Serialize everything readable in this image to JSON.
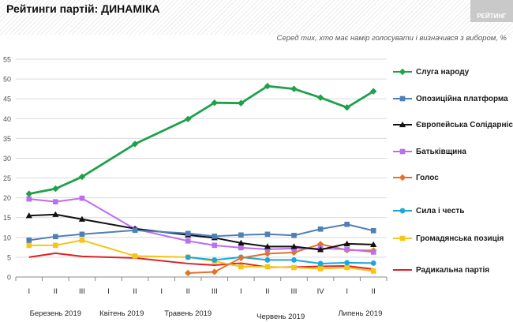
{
  "header": {
    "title": "Рейтинги партій: ДИНАМІКА",
    "brand": "РЕЙТИНГ",
    "subtitle": "Серед тих, хто має намір голосувати і визначився з вибором, %"
  },
  "chart_data": {
    "type": "line",
    "ylim": [
      0,
      55
    ],
    "yticks": [
      0,
      5,
      10,
      15,
      20,
      25,
      30,
      35,
      40,
      45,
      50,
      55
    ],
    "x_ticks": [
      "I",
      "II",
      "III",
      "I",
      "II",
      "I",
      "II",
      "III",
      "I",
      "II",
      "III",
      "IV",
      "I",
      "II"
    ],
    "month_labels": [
      {
        "label": "Березень 2019",
        "center_index": 1
      },
      {
        "label": "Квітень 2019",
        "center_index": 3.5
      },
      {
        "label": "Травень 2019",
        "center_index": 6
      },
      {
        "label": "Червень 2019",
        "center_index": 9.5
      },
      {
        "label": "Липень 2019",
        "center_index": 12.5
      }
    ],
    "grid": true,
    "legend_position": "right",
    "series": [
      {
        "name": "Слуга народу",
        "color": "#1fa04a",
        "marker": "diamond",
        "points": [
          [
            0,
            21
          ],
          [
            1,
            22.3
          ],
          [
            2,
            25.3
          ],
          [
            4,
            33.6
          ],
          [
            6,
            39.9
          ],
          [
            7,
            44
          ],
          [
            8,
            43.9
          ],
          [
            9,
            48.2
          ],
          [
            10,
            47.5
          ],
          [
            11,
            45.3
          ],
          [
            12,
            42.8
          ],
          [
            13,
            46.9
          ]
        ]
      },
      {
        "name": "Опозиційна платформа",
        "color": "#4f7fb6",
        "marker": "square",
        "points": [
          [
            0,
            9.3
          ],
          [
            1,
            10.2
          ],
          [
            2,
            10.8
          ],
          [
            4,
            11.8
          ],
          [
            6,
            11
          ],
          [
            7,
            10.3
          ],
          [
            8,
            10.6
          ],
          [
            9,
            10.8
          ],
          [
            10,
            10.5
          ],
          [
            11,
            12.1
          ],
          [
            12,
            13.3
          ],
          [
            13,
            11.7
          ]
        ]
      },
      {
        "name": "Європейська Солідарність",
        "color": "#111111",
        "marker": "triangle",
        "points": [
          [
            0,
            15.5
          ],
          [
            1,
            15.8
          ],
          [
            2,
            14.6
          ],
          [
            4,
            12.2
          ],
          [
            6,
            10.6
          ],
          [
            7,
            9.9
          ],
          [
            8,
            8.6
          ],
          [
            9,
            7.7
          ],
          [
            10,
            7.7
          ],
          [
            11,
            6.9
          ],
          [
            12,
            8.4
          ],
          [
            13,
            8.2
          ]
        ]
      },
      {
        "name": "Батьківщина",
        "color": "#bb6ef0",
        "marker": "square",
        "points": [
          [
            0,
            19.7
          ],
          [
            1,
            19
          ],
          [
            2,
            19.9
          ],
          [
            4,
            12.1
          ],
          [
            6,
            9.1
          ],
          [
            7,
            8
          ],
          [
            8,
            7.4
          ],
          [
            9,
            7
          ],
          [
            10,
            7.2
          ],
          [
            11,
            7.2
          ],
          [
            12,
            7
          ],
          [
            13,
            6.3
          ]
        ]
      },
      {
        "name": "Голос",
        "color": "#e0732b",
        "marker": "diamond",
        "points": [
          [
            6,
            1
          ],
          [
            7,
            1.3
          ],
          [
            8,
            4.8
          ],
          [
            9,
            5.9
          ],
          [
            10,
            6.2
          ],
          [
            11,
            8.3
          ],
          [
            12,
            6.8
          ],
          [
            13,
            6.7
          ]
        ]
      },
      {
        "name": "Сила і честь",
        "color": "#1ba8d8",
        "marker": "circle",
        "points": [
          [
            6,
            5
          ],
          [
            7,
            4.3
          ],
          [
            8,
            5
          ],
          [
            9,
            4.3
          ],
          [
            10,
            4.3
          ],
          [
            11,
            3.4
          ],
          [
            12,
            3.6
          ],
          [
            13,
            3.5
          ]
        ]
      },
      {
        "name": "Громадянська позиція",
        "color": "#f5c518",
        "marker": "square",
        "points": [
          [
            0,
            8
          ],
          [
            1,
            8
          ],
          [
            2,
            9.3
          ],
          [
            4,
            5.3
          ],
          [
            6,
            5
          ],
          [
            7,
            4
          ],
          [
            8,
            2.6
          ],
          [
            9,
            2.6
          ],
          [
            10,
            2.4
          ],
          [
            11,
            2.1
          ],
          [
            12,
            2.4
          ],
          [
            13,
            1.5
          ]
        ]
      },
      {
        "name": "Радикальна партія",
        "color": "#e01f26",
        "marker": "none",
        "points": [
          [
            0,
            5
          ],
          [
            1,
            6
          ],
          [
            2,
            5.2
          ],
          [
            4,
            4.8
          ],
          [
            6,
            3.4
          ],
          [
            7,
            3
          ],
          [
            8,
            3.5
          ],
          [
            9,
            2.5
          ],
          [
            10,
            2.5
          ],
          [
            11,
            2.7
          ],
          [
            12,
            2.8
          ],
          [
            13,
            2
          ]
        ]
      }
    ]
  }
}
